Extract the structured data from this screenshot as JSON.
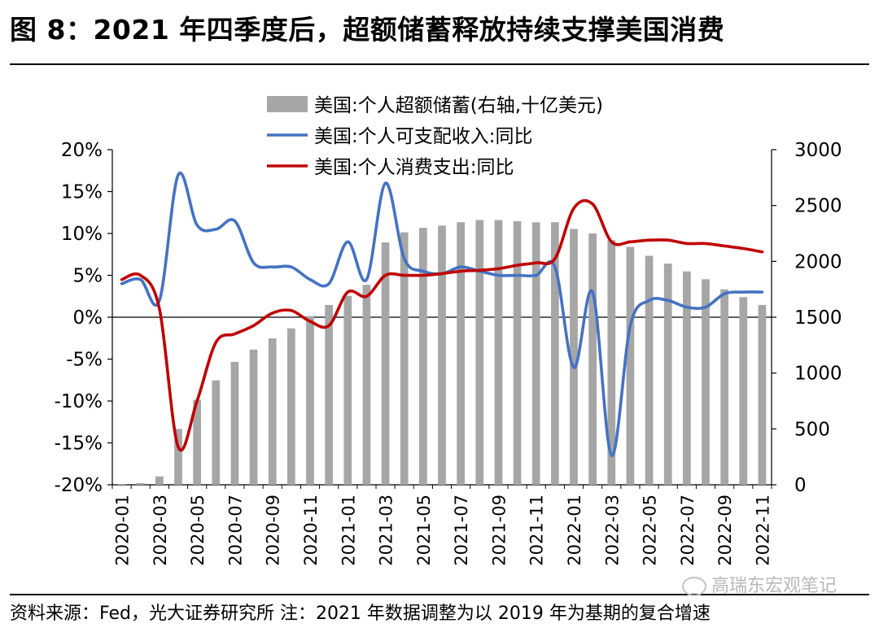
{
  "figure": {
    "title": "图 8：2021 年四季度后，超额储蓄释放持续支撑美国消费",
    "source": "资料来源：Fed，光大证券研究所 注：2021 年数据调整为以 2019 年为基期的复合增速",
    "watermark": "高瑞东宏观笔记"
  },
  "chart_data": {
    "type": "bar+line",
    "categories": [
      "2020-01",
      "2020-02",
      "2020-03",
      "2020-04",
      "2020-05",
      "2020-06",
      "2020-07",
      "2020-08",
      "2020-09",
      "2020-10",
      "2020-11",
      "2020-12",
      "2021-01",
      "2021-02",
      "2021-03",
      "2021-04",
      "2021-05",
      "2021-06",
      "2021-07",
      "2021-08",
      "2021-09",
      "2021-10",
      "2021-11",
      "2021-12",
      "2022-01",
      "2022-02",
      "2022-03",
      "2022-04",
      "2022-05",
      "2022-06",
      "2022-07",
      "2022-08",
      "2022-09",
      "2022-10",
      "2022-11"
    ],
    "x_tick_labels": [
      "2020-01",
      "2020-03",
      "2020-05",
      "2020-07",
      "2020-09",
      "2020-11",
      "2021-01",
      "2021-03",
      "2021-05",
      "2021-07",
      "2021-09",
      "2021-11",
      "2022-01",
      "2022-03",
      "2022-05",
      "2022-07",
      "2022-09",
      "2022-11"
    ],
    "y_left": {
      "ticks": [
        -0.2,
        -0.15,
        -0.1,
        -0.05,
        0,
        0.05,
        0.1,
        0.15,
        0.2
      ],
      "tick_labels": [
        "-20%",
        "-15%",
        "-10%",
        "-5%",
        "0%",
        "5%",
        "10%",
        "15%",
        "20%"
      ],
      "lim": [
        -0.2,
        0.2
      ]
    },
    "y_right": {
      "ticks": [
        0,
        500,
        1000,
        1500,
        2000,
        2500,
        3000
      ],
      "tick_labels": [
        "0",
        "500",
        "1000",
        "1500",
        "2000",
        "2500",
        "3000"
      ],
      "lim": [
        0,
        3000
      ]
    },
    "legend_position": "top-center",
    "series": [
      {
        "name": "美国:个人超额储蓄(右轴,十亿美元)",
        "type": "bar",
        "axis": "right",
        "color": "#a6a6a6",
        "values": [
          5,
          15,
          75,
          500,
          760,
          935,
          1100,
          1210,
          1310,
          1400,
          1510,
          1610,
          1690,
          1790,
          2170,
          2260,
          2300,
          2320,
          2350,
          2370,
          2370,
          2360,
          2350,
          2350,
          2290,
          2250,
          2190,
          2130,
          2050,
          1980,
          1910,
          1840,
          1750,
          1680,
          1610
        ]
      },
      {
        "name": "美国:个人可支配收入:同比",
        "type": "line",
        "axis": "left",
        "color": "#4472c4",
        "values": [
          0.04,
          0.045,
          0.02,
          0.17,
          0.11,
          0.105,
          0.115,
          0.065,
          0.06,
          0.06,
          0.045,
          0.04,
          0.09,
          0.045,
          0.16,
          0.07,
          0.055,
          0.052,
          0.06,
          0.055,
          0.05,
          0.05,
          0.05,
          0.06,
          -0.06,
          0.03,
          -0.165,
          -0.01,
          0.02,
          0.02,
          0.012,
          0.012,
          0.028,
          0.03,
          0.03
        ]
      },
      {
        "name": "美国:个人消费支出:同比",
        "type": "line",
        "axis": "left",
        "color": "#c00000",
        "values": [
          0.045,
          0.05,
          0.01,
          -0.155,
          -0.1,
          -0.03,
          -0.02,
          -0.01,
          0.005,
          0.008,
          -0.005,
          -0.01,
          0.03,
          0.025,
          0.05,
          0.05,
          0.05,
          0.052,
          0.055,
          0.056,
          0.058,
          0.062,
          0.065,
          0.07,
          0.13,
          0.135,
          0.09,
          0.09,
          0.092,
          0.092,
          0.088,
          0.088,
          0.085,
          0.082,
          0.078
        ]
      }
    ]
  }
}
